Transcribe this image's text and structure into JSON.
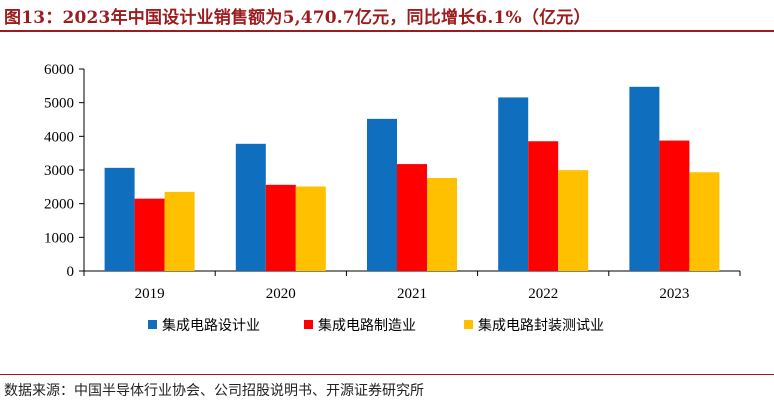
{
  "header": {
    "title": "图13：2023年中国设计业销售额为5,470.7亿元，同比增长6.1%（亿元）"
  },
  "footer": {
    "source": "数据来源：中国半导体行业协会、公司招股说明书、开源证券研究所"
  },
  "chart_data": {
    "type": "bar",
    "categories": [
      "2019",
      "2020",
      "2021",
      "2022",
      "2023"
    ],
    "series": [
      {
        "name": "集成电路设计业",
        "color": "#0f6ebd",
        "values": [
          3064,
          3778,
          4519,
          5156,
          5471
        ]
      },
      {
        "name": "集成电路制造业",
        "color": "#ff0000",
        "values": [
          2149,
          2560,
          3176,
          3854,
          3874
        ]
      },
      {
        "name": "集成电路封装测试业",
        "color": "#ffc000",
        "values": [
          2350,
          2510,
          2763,
          2995,
          2933
        ]
      }
    ],
    "ylim": [
      0,
      6000
    ],
    "yticks": [
      0,
      1000,
      2000,
      3000,
      4000,
      5000,
      6000
    ],
    "grid": false,
    "legend_position": "bottom"
  }
}
